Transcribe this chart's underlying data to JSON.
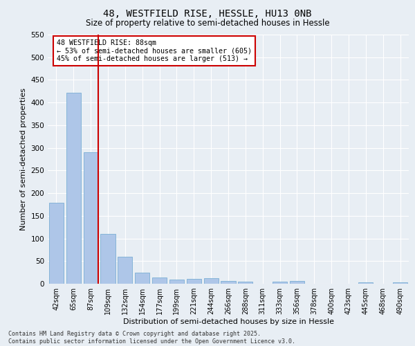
{
  "title_line1": "48, WESTFIELD RISE, HESSLE, HU13 0NB",
  "title_line2": "Size of property relative to semi-detached houses in Hessle",
  "xlabel": "Distribution of semi-detached houses by size in Hessle",
  "ylabel": "Number of semi-detached properties",
  "categories": [
    "42sqm",
    "65sqm",
    "87sqm",
    "109sqm",
    "132sqm",
    "154sqm",
    "177sqm",
    "199sqm",
    "221sqm",
    "244sqm",
    "266sqm",
    "288sqm",
    "311sqm",
    "333sqm",
    "356sqm",
    "378sqm",
    "400sqm",
    "423sqm",
    "445sqm",
    "468sqm",
    "490sqm"
  ],
  "values": [
    178,
    422,
    290,
    110,
    60,
    25,
    13,
    9,
    10,
    12,
    6,
    5,
    0,
    5,
    6,
    0,
    0,
    0,
    3,
    0,
    3
  ],
  "bar_color": "#aec6e8",
  "bar_edge_color": "#7aafd4",
  "bg_color": "#e8eef4",
  "grid_color": "#ffffff",
  "vline_x_index": 2,
  "vline_color": "#cc0000",
  "annotation_text": "48 WESTFIELD RISE: 88sqm\n← 53% of semi-detached houses are smaller (605)\n45% of semi-detached houses are larger (513) →",
  "annotation_box_color": "#ffffff",
  "annotation_box_edge": "#cc0000",
  "footer": "Contains HM Land Registry data © Crown copyright and database right 2025.\nContains public sector information licensed under the Open Government Licence v3.0.",
  "ylim": [
    0,
    550
  ],
  "yticks": [
    0,
    50,
    100,
    150,
    200,
    250,
    300,
    350,
    400,
    450,
    500,
    550
  ]
}
